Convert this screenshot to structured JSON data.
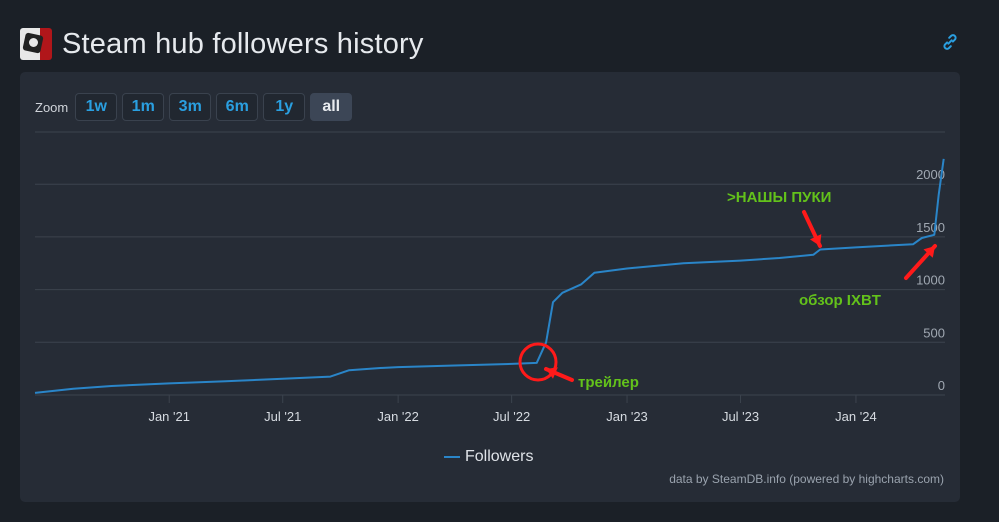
{
  "header": {
    "title": "Steam hub followers history",
    "icon": "game-logo-icon",
    "link_icon": "link-icon"
  },
  "zoom": {
    "label": "Zoom",
    "buttons": [
      "1w",
      "1m",
      "3m",
      "6m",
      "1y",
      "all"
    ],
    "active": "all"
  },
  "chart_data": {
    "type": "line",
    "title": "",
    "xlabel": "",
    "ylabel": "",
    "ylim": [
      0,
      2500
    ],
    "yticks": [
      0,
      500,
      1000,
      1500,
      2000
    ],
    "xticks": [
      "Jan '21",
      "Jul '21",
      "Jan '22",
      "Jul '22",
      "Jan '23",
      "Jul '23",
      "Jan '24"
    ],
    "grid": true,
    "legend_position": "bottom-center",
    "series": [
      {
        "name": "Followers",
        "color": "#2a85c8",
        "points": [
          [
            "2020-06-01",
            20
          ],
          [
            "2020-08-01",
            60
          ],
          [
            "2020-10-01",
            85
          ],
          [
            "2021-01-01",
            110
          ],
          [
            "2021-04-01",
            130
          ],
          [
            "2021-07-01",
            155
          ],
          [
            "2021-09-15",
            175
          ],
          [
            "2021-10-15",
            235
          ],
          [
            "2021-12-01",
            255
          ],
          [
            "2022-01-01",
            265
          ],
          [
            "2022-04-01",
            280
          ],
          [
            "2022-07-01",
            295
          ],
          [
            "2022-08-10",
            305
          ],
          [
            "2022-08-25",
            500
          ],
          [
            "2022-09-05",
            880
          ],
          [
            "2022-09-20",
            970
          ],
          [
            "2022-10-20",
            1050
          ],
          [
            "2022-11-10",
            1160
          ],
          [
            "2023-01-01",
            1200
          ],
          [
            "2023-04-01",
            1250
          ],
          [
            "2023-07-01",
            1275
          ],
          [
            "2023-09-01",
            1300
          ],
          [
            "2023-10-25",
            1330
          ],
          [
            "2023-11-05",
            1380
          ],
          [
            "2024-01-01",
            1400
          ],
          [
            "2024-03-01",
            1420
          ],
          [
            "2024-04-01",
            1430
          ],
          [
            "2024-04-15",
            1490
          ],
          [
            "2024-05-05",
            1520
          ],
          [
            "2024-05-12",
            1900
          ],
          [
            "2024-05-20",
            2240
          ]
        ]
      }
    ],
    "annotations": [
      {
        "text": ">НАШЫ ПУКИ",
        "color": "#63c21b"
      },
      {
        "text": "обзор IXBT",
        "color": "#63c21b"
      },
      {
        "text": "трейлер",
        "color": "#63c21b"
      }
    ],
    "annotation_color": "#ff1a1a"
  },
  "credits": "data by SteamDB.info (powered by highcharts.com)"
}
